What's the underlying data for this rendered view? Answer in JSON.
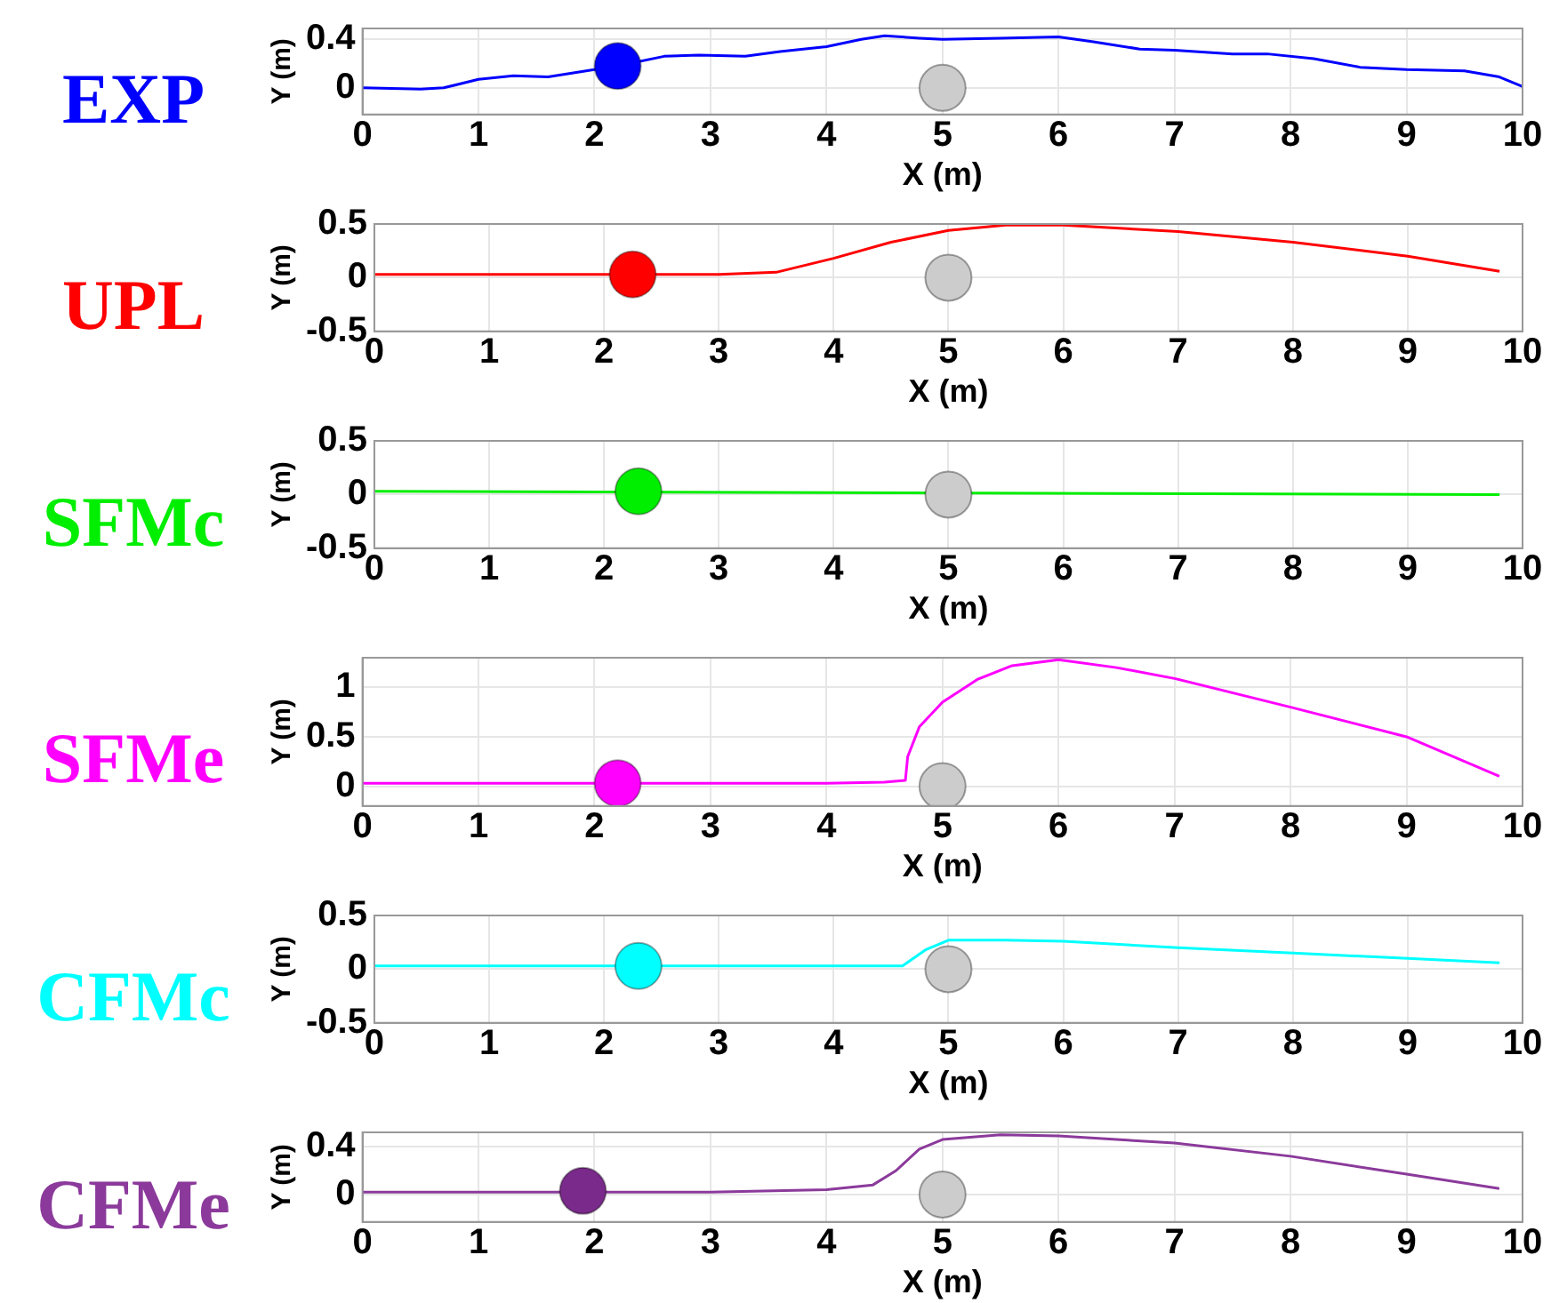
{
  "chart_data": [
    {
      "type": "line",
      "title": "EXP",
      "xlabel": "X (m)",
      "ylabel": "Y (m)",
      "xlim": [
        0,
        10
      ],
      "xticks": [
        0,
        1,
        2,
        3,
        4,
        5,
        6,
        7,
        8,
        9,
        10
      ],
      "ylim": [
        -0.22,
        0.49
      ],
      "yticks": [
        0,
        0.4
      ],
      "grid": true,
      "legend": false,
      "series": [
        {
          "marker": "none",
          "color": "#0000ff",
          "x": [
            0,
            0.5,
            0.7,
            1,
            1.3,
            1.6,
            2,
            2.3,
            2.6,
            2.9,
            3.3,
            3.6,
            4,
            4.3,
            4.5,
            4.8,
            5,
            5.5,
            6,
            6.3,
            6.7,
            7,
            7.5,
            7.8,
            8.2,
            8.6,
            9,
            9.5,
            9.8,
            10
          ],
          "values": [
            0,
            -0.01,
            0,
            0.07,
            0.1,
            0.09,
            0.15,
            0.2,
            0.26,
            0.27,
            0.26,
            0.3,
            0.34,
            0.4,
            0.43,
            0.41,
            0.4,
            0.41,
            0.42,
            0.38,
            0.32,
            0.31,
            0.28,
            0.28,
            0.24,
            0.17,
            0.15,
            0.14,
            0.09,
            0.01
          ]
        },
        {
          "type": "scatter",
          "marker": "circle",
          "color": "#0000ff",
          "x": [
            2.2
          ],
          "values": [
            0.18
          ]
        },
        {
          "type": "scatter",
          "marker": "circle",
          "color": "#cccccc",
          "x": [
            5
          ],
          "values": [
            0
          ]
        }
      ]
    },
    {
      "type": "line",
      "title": "UPL",
      "xlabel": "X (m)",
      "ylabel": "Y (m)",
      "xlim": [
        0,
        10
      ],
      "xticks": [
        0,
        1,
        2,
        3,
        4,
        5,
        6,
        7,
        8,
        9,
        10
      ],
      "ylim": [
        -0.5,
        0.5
      ],
      "yticks": [
        -0.5,
        0,
        0.5
      ],
      "grid": true,
      "legend": false,
      "series": [
        {
          "marker": "none",
          "color": "#ff0000",
          "x": [
            0,
            3,
            3.5,
            4,
            4.5,
            5,
            5.5,
            6,
            7,
            8,
            9,
            9.8
          ],
          "values": [
            0.03,
            0.03,
            0.05,
            0.18,
            0.33,
            0.44,
            0.49,
            0.49,
            0.43,
            0.33,
            0.2,
            0.06
          ]
        },
        {
          "type": "scatter",
          "marker": "circle",
          "color": "#ff0000",
          "x": [
            2.25
          ],
          "values": [
            0.03
          ]
        },
        {
          "type": "scatter",
          "marker": "circle",
          "color": "#cccccc",
          "x": [
            5
          ],
          "values": [
            0
          ]
        }
      ]
    },
    {
      "type": "line",
      "title": "SFMc",
      "xlabel": "X (m)",
      "ylabel": "Y (m)",
      "xlim": [
        0,
        10
      ],
      "xticks": [
        0,
        1,
        2,
        3,
        4,
        5,
        6,
        7,
        8,
        9,
        10
      ],
      "ylim": [
        -0.5,
        0.5
      ],
      "yticks": [
        -0.5,
        0,
        0.5
      ],
      "grid": true,
      "legend": false,
      "series": [
        {
          "marker": "none",
          "color": "#00ee00",
          "x": [
            0,
            6.5,
            9.8
          ],
          "values": [
            0.03,
            0.01,
            0
          ]
        },
        {
          "type": "scatter",
          "marker": "circle",
          "color": "#00ee00",
          "x": [
            2.3
          ],
          "values": [
            0.03
          ]
        },
        {
          "type": "scatter",
          "marker": "circle",
          "color": "#cccccc",
          "x": [
            5
          ],
          "values": [
            0
          ]
        }
      ]
    },
    {
      "type": "line",
      "title": "SFMe",
      "xlabel": "X (m)",
      "ylabel": "Y (m)",
      "xlim": [
        0,
        10
      ],
      "xticks": [
        0,
        1,
        2,
        3,
        4,
        5,
        6,
        7,
        8,
        9,
        10
      ],
      "ylim": [
        -0.2,
        1.3
      ],
      "yticks": [
        0,
        0.5,
        1
      ],
      "grid": true,
      "legend": false,
      "series": [
        {
          "marker": "none",
          "color": "#ff00ff",
          "x": [
            0,
            4,
            4.5,
            4.68,
            4.7,
            4.8,
            5,
            5.3,
            5.6,
            6,
            6.5,
            7,
            8,
            9,
            9.8
          ],
          "values": [
            0.03,
            0.03,
            0.04,
            0.06,
            0.3,
            0.6,
            0.85,
            1.08,
            1.22,
            1.28,
            1.2,
            1.09,
            0.8,
            0.5,
            0.1
          ]
        },
        {
          "type": "scatter",
          "marker": "circle",
          "color": "#ff00ff",
          "x": [
            2.2
          ],
          "values": [
            0.03
          ]
        },
        {
          "type": "scatter",
          "marker": "circle",
          "color": "#cccccc",
          "x": [
            5
          ],
          "values": [
            0
          ]
        }
      ]
    },
    {
      "type": "line",
      "title": "CFMc",
      "xlabel": "X (m)",
      "ylabel": "Y (m)",
      "xlim": [
        0,
        10
      ],
      "xticks": [
        0,
        1,
        2,
        3,
        4,
        5,
        6,
        7,
        8,
        9,
        10
      ],
      "ylim": [
        -0.5,
        0.5
      ],
      "yticks": [
        -0.5,
        0,
        0.5
      ],
      "grid": true,
      "legend": false,
      "series": [
        {
          "marker": "none",
          "color": "#00ffff",
          "x": [
            0,
            4.6,
            4.8,
            5,
            5.5,
            6,
            7,
            8,
            9,
            9.8
          ],
          "values": [
            0.03,
            0.03,
            0.18,
            0.27,
            0.27,
            0.26,
            0.2,
            0.15,
            0.1,
            0.06
          ]
        },
        {
          "type": "scatter",
          "marker": "circle",
          "color": "#00ffff",
          "x": [
            2.3
          ],
          "values": [
            0.03
          ]
        },
        {
          "type": "scatter",
          "marker": "circle",
          "color": "#cccccc",
          "x": [
            5
          ],
          "values": [
            0
          ]
        }
      ]
    },
    {
      "type": "line",
      "title": "CFMe",
      "xlabel": "X (m)",
      "ylabel": "Y (m)",
      "xlim": [
        0,
        10
      ],
      "xticks": [
        0,
        1,
        2,
        3,
        4,
        5,
        6,
        7,
        8,
        9,
        10
      ],
      "ylim": [
        -0.23,
        0.52
      ],
      "yticks": [
        0,
        0.4
      ],
      "grid": true,
      "legend": false,
      "series": [
        {
          "marker": "none",
          "color": "#8b3a9b",
          "x": [
            0,
            3,
            4,
            4.4,
            4.6,
            4.8,
            5,
            5.5,
            6,
            7,
            8,
            9,
            9.8
          ],
          "values": [
            0.02,
            0.02,
            0.04,
            0.08,
            0.2,
            0.38,
            0.46,
            0.5,
            0.49,
            0.43,
            0.32,
            0.17,
            0.05
          ]
        },
        {
          "type": "scatter",
          "marker": "circle",
          "color": "#7a2a8a",
          "x": [
            1.9
          ],
          "values": [
            0.03
          ]
        },
        {
          "type": "scatter",
          "marker": "circle",
          "color": "#cccccc",
          "x": [
            5
          ],
          "values": [
            0
          ]
        }
      ]
    }
  ]
}
